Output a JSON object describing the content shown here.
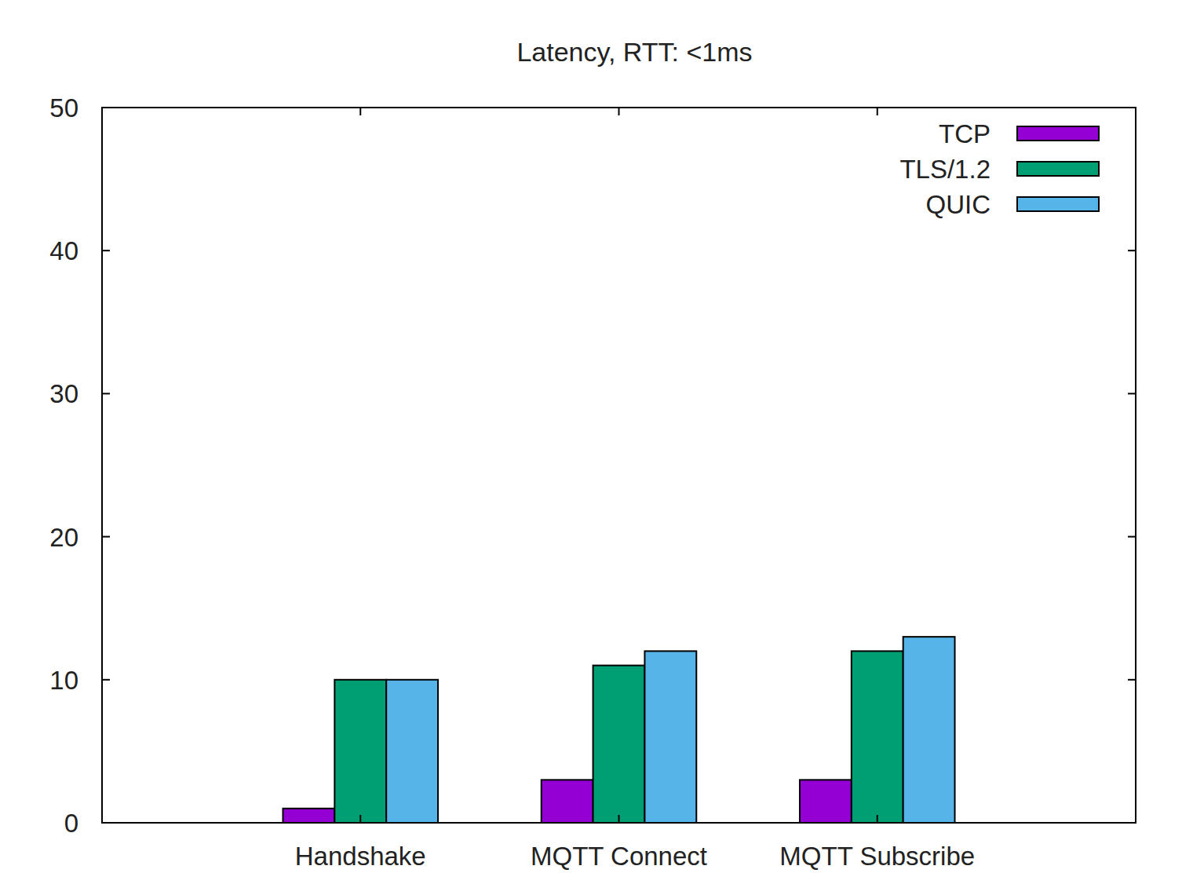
{
  "chart_data": {
    "type": "bar",
    "title": "Latency, RTT: <1ms",
    "categories": [
      "Handshake",
      "MQTT Connect",
      "MQTT Subscribe"
    ],
    "series": [
      {
        "name": "TCP",
        "color": "#9400d3",
        "values": [
          1,
          3,
          3
        ]
      },
      {
        "name": "TLS/1.2",
        "color": "#009e73",
        "values": [
          10,
          11,
          12
        ]
      },
      {
        "name": "QUIC",
        "color": "#56b4e9",
        "values": [
          10,
          12,
          13
        ]
      }
    ],
    "ylim": [
      0,
      50
    ],
    "yticks": [
      0,
      10,
      20,
      30,
      40,
      50
    ],
    "grid": false,
    "legend": "top-right"
  }
}
